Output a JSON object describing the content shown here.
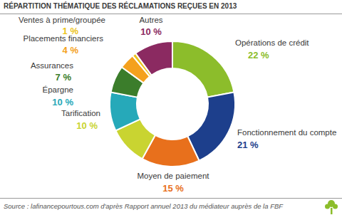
{
  "chart_data": {
    "type": "pie",
    "title": "RÉPARTITION THÉMATIQUE DES RÉCLAMATIONS REÇUES EN 2013",
    "categories": [
      "Opérations de crédit",
      "Fonctionnement du compte",
      "Moyen de paiement",
      "Tarification",
      "Épargne",
      "Assurances",
      "Placements financiers",
      "Ventes à prime/groupée",
      "Autres"
    ],
    "values": [
      22,
      21,
      15,
      10,
      10,
      7,
      4,
      1,
      10
    ],
    "value_labels": [
      "22 %",
      "21 %",
      "15 %",
      "10 %",
      "10 %",
      "7 %",
      "4 %",
      "1 %",
      "10 %"
    ],
    "colors": [
      "#8cbd2b",
      "#1d3f8c",
      "#e8701c",
      "#c9d431",
      "#26a9b9",
      "#3b7d2b",
      "#f4a11d",
      "#ecc41c",
      "#8b2a61"
    ],
    "data_labels": true,
    "annotations": [
      "Source : lafinancepourtous.com d'après Rapport annuel 2013 du médiateur auprès de la FBF"
    ]
  }
}
